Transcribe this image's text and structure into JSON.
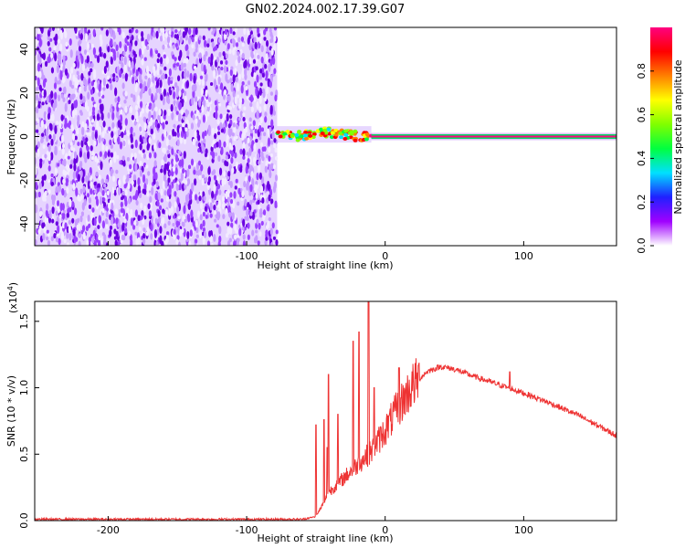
{
  "title": "GN02.2024.002.17.39.G07",
  "chart_data": [
    {
      "type": "heatmap",
      "xlabel": "Height of straight line (km)",
      "ylabel": "Frequency (Hz)",
      "xlim": [
        -253,
        167
      ],
      "ylim": [
        -50,
        50
      ],
      "x_ticks": [
        -200,
        -100,
        0,
        100
      ],
      "y_ticks": [
        -40,
        -20,
        0,
        20,
        40
      ],
      "colorbar": {
        "label": "Normalized spectral amplitude",
        "range": [
          0,
          1
        ],
        "ticks": [
          "0.0",
          "0.2",
          "0.4",
          "0.6",
          "0.8"
        ],
        "colors": [
          "#ffffff",
          "#a000ff",
          "#2020ff",
          "#00e0ff",
          "#00ff40",
          "#80ff00",
          "#ffff00",
          "#ff8000",
          "#ff0000",
          "#ff0080"
        ]
      },
      "regions": [
        {
          "name": "noise",
          "x": [
            -253,
            -78
          ],
          "freq": [
            -50,
            50
          ],
          "amplitude": 0.1
        },
        {
          "name": "transition",
          "x": [
            -78,
            -10
          ],
          "freq": [
            -3,
            5
          ],
          "amplitude": 0.6
        },
        {
          "name": "carrier",
          "x": [
            -10,
            167
          ],
          "freq": [
            0,
            0
          ],
          "amplitude": 0.95
        }
      ]
    },
    {
      "type": "line",
      "xlabel": "Height of straight line (km)",
      "ylabel": "SNR (10 * v/v)",
      "yscale_label": "(x10",
      "yscale_exp": "4",
      "yscale_close": ")",
      "xlim": [
        -253,
        167
      ],
      "ylim": [
        0,
        1.65
      ],
      "x_ticks": [
        -200,
        -100,
        0,
        100
      ],
      "y_ticks": [
        "0.0",
        "0.5",
        "1.0",
        "1.5"
      ],
      "color": "#ee3333",
      "profile": {
        "x": [
          -253,
          -200,
          -100,
          -60,
          -50,
          -45,
          -40,
          -30,
          -20,
          -10,
          0,
          10,
          20,
          30,
          40,
          50,
          60,
          80,
          100,
          120,
          140,
          167
        ],
        "y": [
          0.01,
          0.01,
          0.01,
          0.01,
          0.03,
          0.12,
          0.22,
          0.32,
          0.42,
          0.52,
          0.68,
          0.86,
          1.02,
          1.12,
          1.16,
          1.14,
          1.1,
          1.03,
          0.96,
          0.88,
          0.79,
          0.64
        ]
      },
      "spikes": [
        {
          "x": -50,
          "y": 0.72
        },
        {
          "x": -44,
          "y": 0.76
        },
        {
          "x": -42,
          "y": 0.55
        },
        {
          "x": -41,
          "y": 1.1
        },
        {
          "x": -34,
          "y": 0.8
        },
        {
          "x": -23,
          "y": 1.35
        },
        {
          "x": -19,
          "y": 1.42
        },
        {
          "x": -12,
          "y": 1.65
        },
        {
          "x": -8,
          "y": 1.0
        },
        {
          "x": 10,
          "y": 1.15
        },
        {
          "x": 90,
          "y": 1.12
        }
      ]
    }
  ]
}
